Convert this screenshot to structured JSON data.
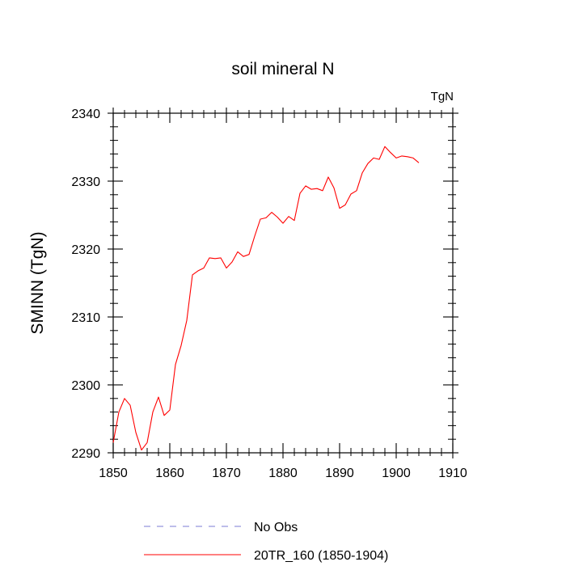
{
  "chart_data": {
    "type": "line",
    "title": "soil mineral N",
    "units_label": "TgN",
    "xlabel": "",
    "ylabel": "SMINN  (TgN)",
    "xlim": [
      1850,
      1910
    ],
    "ylim": [
      2290,
      2340
    ],
    "x_ticks": [
      1850,
      1860,
      1870,
      1880,
      1890,
      1900,
      1910
    ],
    "y_ticks": [
      2290,
      2300,
      2310,
      2320,
      2330,
      2340
    ],
    "x_minor_step": 2,
    "y_minor_step": 2,
    "grid": false,
    "legend_position": "bottom",
    "series": [
      {
        "name": "No Obs",
        "color": "#7b7bd6",
        "dashed": true,
        "x": [],
        "y": []
      },
      {
        "name": "20TR_160 (1850-1904)",
        "color": "#ff0000",
        "dashed": false,
        "x": [
          1850,
          1851,
          1852,
          1853,
          1854,
          1855,
          1856,
          1857,
          1858,
          1859,
          1860,
          1861,
          1862,
          1863,
          1864,
          1865,
          1866,
          1867,
          1868,
          1869,
          1870,
          1871,
          1872,
          1873,
          1874,
          1875,
          1876,
          1877,
          1878,
          1879,
          1880,
          1881,
          1882,
          1883,
          1884,
          1885,
          1886,
          1887,
          1888,
          1889,
          1890,
          1891,
          1892,
          1893,
          1894,
          1895,
          1896,
          1897,
          1898,
          1899,
          1900,
          1901,
          1902,
          1903,
          1904
        ],
        "y": [
          2291.5,
          2296,
          2298,
          2297,
          2293,
          2290.4,
          2291.5,
          2296,
          2298.2,
          2295.5,
          2296.3,
          2303,
          2305.8,
          2309.5,
          2316.2,
          2316.8,
          2317.2,
          2318.7,
          2318.6,
          2318.7,
          2317.2,
          2318.1,
          2319.6,
          2318.9,
          2319.2,
          2321.9,
          2324.4,
          2324.6,
          2325.4,
          2324.7,
          2323.8,
          2324.8,
          2324.2,
          2328.2,
          2329.3,
          2328.8,
          2328.9,
          2328.6,
          2330.6,
          2329,
          2326,
          2326.5,
          2328.1,
          2328.6,
          2331.2,
          2332.6,
          2333.4,
          2333.2,
          2335.1,
          2334.2,
          2333.4,
          2333.7,
          2333.6,
          2333.4,
          2332.7
        ]
      }
    ]
  }
}
